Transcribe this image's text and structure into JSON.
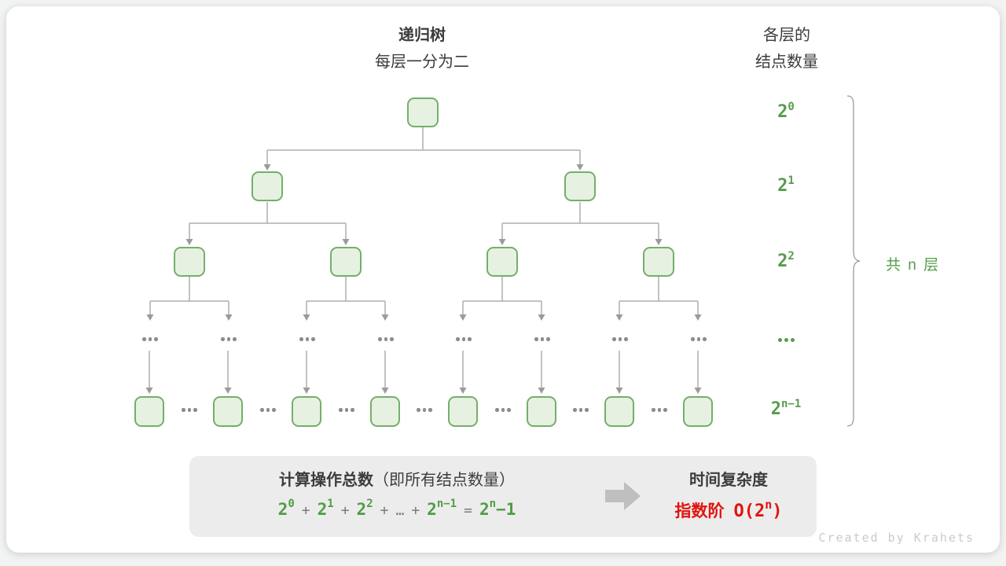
{
  "header": {
    "title": "递归树",
    "subtitle": "每层一分为二"
  },
  "right_header": {
    "line1": "各层的",
    "line2": "结点数量"
  },
  "level_labels": {
    "l0": {
      "base": "2",
      "sup": "0"
    },
    "l1": {
      "base": "2",
      "sup": "1"
    },
    "l2": {
      "base": "2",
      "sup": "2"
    },
    "l4": {
      "base": "2",
      "sup": "n−1"
    }
  },
  "brace_label": "共 n 层",
  "summary_box": {
    "title_bold": "计算操作总数",
    "title_rest": "（即所有结点数量）",
    "plus": "+",
    "equals": "=",
    "dots": "…",
    "terms": {
      "t0": {
        "base": "2",
        "sup": "0"
      },
      "t1": {
        "base": "2",
        "sup": "1"
      },
      "t2": {
        "base": "2",
        "sup": "2"
      },
      "t3": {
        "base": "2",
        "sup": "n−1"
      }
    },
    "result": {
      "base": "2",
      "sup": "n",
      "rest": "−1"
    },
    "complexity_title": "时间复杂度",
    "complexity_prefix": "指数阶",
    "complexity_O": {
      "pre": "O(",
      "base": "2",
      "sup": "n",
      "post": ")"
    }
  },
  "watermark": "Created by Krahets",
  "colors": {
    "node_fill": "#e7f1e2",
    "node_border": "#74af6a",
    "text_green": "#569c4c",
    "connector_gray": "#adadad",
    "arrowhead_gray": "#9b9b9b",
    "dots_gray": "#8c8c8c",
    "box_bg": "#ececec",
    "red": "#e0150f",
    "dark_text": "#3c3c3c"
  }
}
